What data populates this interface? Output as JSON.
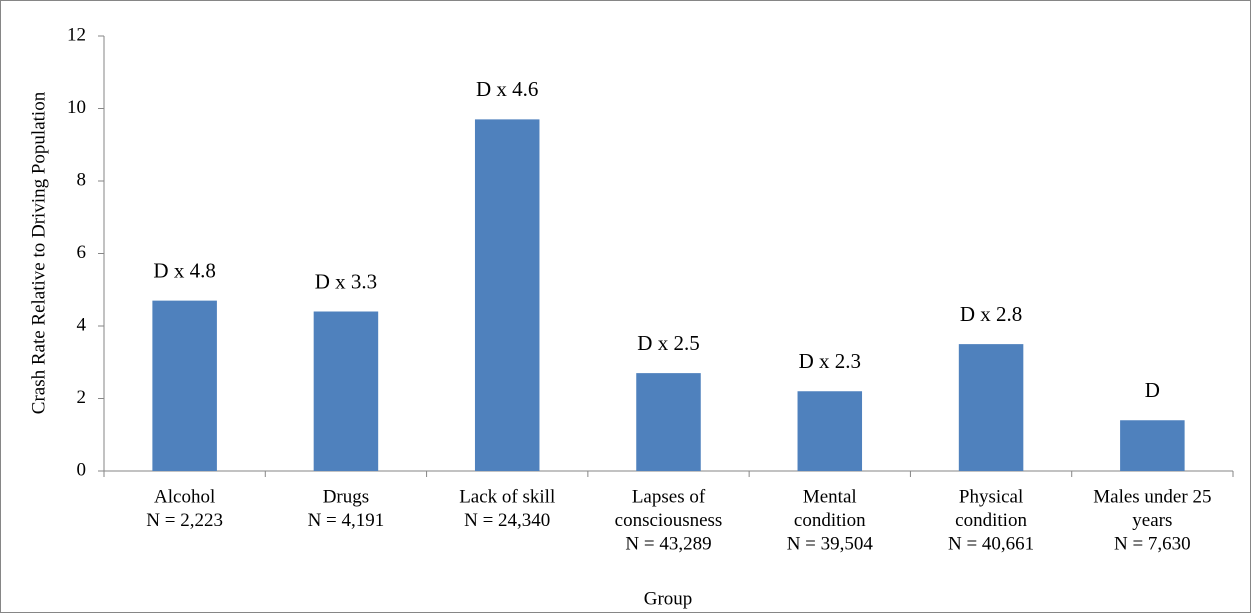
{
  "chart_data": {
    "type": "bar",
    "y_axis_label": "Crash Rate Relative to Driving Population",
    "x_axis_label": "Group",
    "categories": [
      [
        "Alcohol",
        "N = 2,223"
      ],
      [
        "Drugs",
        "N = 4,191"
      ],
      [
        "Lack of skill",
        "N = 24,340"
      ],
      [
        "Lapses of",
        "consciousness",
        "N = 43,289"
      ],
      [
        "Mental",
        "condition",
        "N = 39,504"
      ],
      [
        "Physical",
        "condition",
        "N = 40,661"
      ],
      [
        "Males under 25",
        "years",
        "N = 7,630"
      ]
    ],
    "values": [
      4.7,
      4.4,
      9.7,
      2.7,
      2.2,
      3.5,
      1.4
    ],
    "annotations": [
      "D x 4.8",
      "D x 3.3",
      "D x 4.6",
      "D x 2.5",
      "D x 2.3",
      "D x 2.8",
      "D"
    ],
    "color": "#4f81bd",
    "ylim": [
      0,
      12
    ],
    "yticks": [
      0,
      2,
      4,
      6,
      8,
      10,
      12
    ],
    "grid": false
  }
}
